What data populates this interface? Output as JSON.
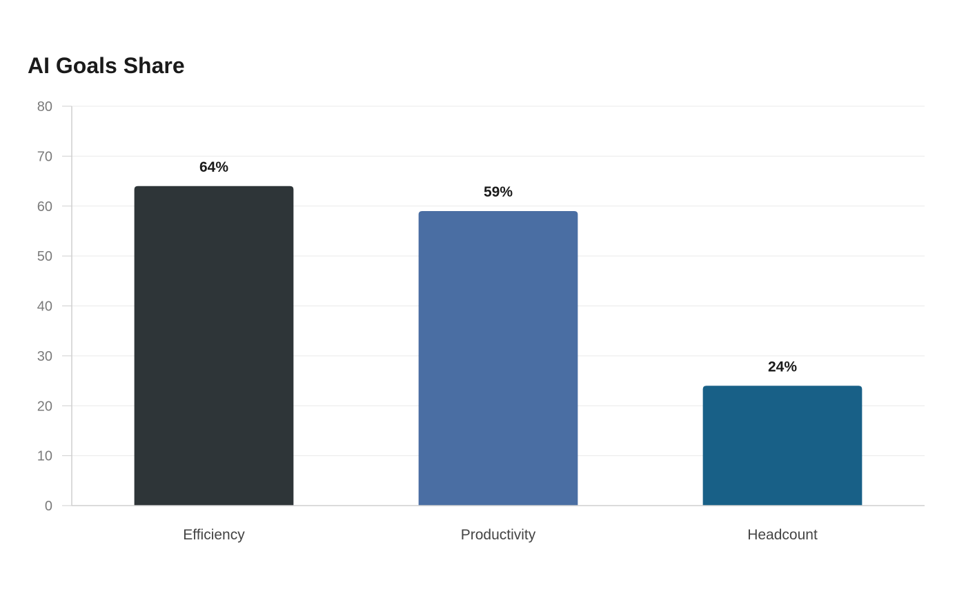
{
  "chart_data": {
    "type": "bar",
    "title": "AI Goals Share",
    "categories": [
      "Efficiency",
      "Productivity",
      "Headcount"
    ],
    "values": [
      64,
      59,
      24
    ],
    "data_labels": [
      "64%",
      "59%",
      "24%"
    ],
    "colors": [
      "#2e3538",
      "#4a6ea3",
      "#186087"
    ],
    "ylim": [
      0,
      80
    ],
    "yticks": [
      0,
      10,
      20,
      30,
      40,
      50,
      60,
      70,
      80
    ],
    "grid": true,
    "legend": "none"
  }
}
